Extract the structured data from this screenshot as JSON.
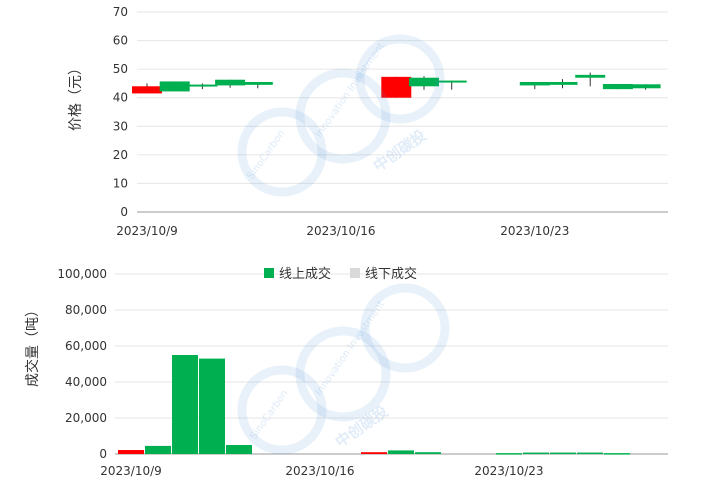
{
  "watermark": {
    "brand_en": "SinoCarbon",
    "tagline_en": "Innovation Investment",
    "brand_cn": "中创碳投",
    "color": "#4a90d9"
  },
  "chart_data": [
    {
      "type": "candlestick",
      "ylabel": "价格（元）",
      "ylim": [
        0,
        70
      ],
      "yticks": [
        0,
        10,
        20,
        30,
        40,
        50,
        60,
        70
      ],
      "xtick_labels": [
        "2023/10/9",
        "2023/10/16",
        "2023/10/23"
      ],
      "grid": true,
      "colors": {
        "up": "#ff0000",
        "down": "#00b050"
      },
      "candles": [
        {
          "date": "2023/10/9",
          "open": 41.5,
          "close": 44.0,
          "high": 45.0,
          "low": 41.5
        },
        {
          "date": "2023/10/10",
          "open": 45.7,
          "close": 42.2,
          "high": 45.7,
          "low": 42.2
        },
        {
          "date": "2023/10/11",
          "open": 44.6,
          "close": 44.2,
          "high": 45.0,
          "low": 43.0
        },
        {
          "date": "2023/10/12",
          "open": 46.3,
          "close": 44.3,
          "high": 46.3,
          "low": 43.5
        },
        {
          "date": "2023/10/13",
          "open": 45.5,
          "close": 44.5,
          "high": 45.5,
          "low": 43.3
        },
        {
          "date": "2023/10/18",
          "open": 40.0,
          "close": 47.3,
          "high": 47.3,
          "low": 40.0
        },
        {
          "date": "2023/10/19",
          "open": 47.0,
          "close": 44.0,
          "high": 47.5,
          "low": 42.8
        },
        {
          "date": "2023/10/20",
          "open": 46.0,
          "close": 45.3,
          "high": 46.0,
          "low": 42.8
        },
        {
          "date": "2023/10/23",
          "open": 45.5,
          "close": 44.3,
          "high": 45.5,
          "low": 43.0
        },
        {
          "date": "2023/10/24",
          "open": 45.5,
          "close": 44.5,
          "high": 46.5,
          "low": 43.3
        },
        {
          "date": "2023/10/25",
          "open": 48.0,
          "close": 47.0,
          "high": 48.8,
          "low": 44.0
        },
        {
          "date": "2023/10/26",
          "open": 44.8,
          "close": 43.0,
          "high": 44.8,
          "low": 43.0
        },
        {
          "date": "2023/10/27",
          "open": 44.7,
          "close": 43.3,
          "high": 44.7,
          "low": 42.8
        }
      ]
    },
    {
      "type": "bar",
      "stacked": true,
      "ylabel": "成交量（吨）",
      "ylim": [
        0,
        100000
      ],
      "yticks": [
        0,
        20000,
        40000,
        60000,
        80000,
        100000
      ],
      "ytick_labels": [
        "0",
        "20,000",
        "40,000",
        "60,000",
        "80,000",
        "100,000"
      ],
      "xtick_labels": [
        "2023/10/9",
        "2023/10/16",
        "2023/10/23"
      ],
      "grid": true,
      "legend_position": "top",
      "series": [
        {
          "name": "线上成交",
          "color": "#00b050",
          "up_color": "#ff0000",
          "values": [
            {
              "date": "2023/10/9",
              "value": 2200,
              "rising": true
            },
            {
              "date": "2023/10/10",
              "value": 4500,
              "rising": false
            },
            {
              "date": "2023/10/11",
              "value": 55000,
              "rising": false
            },
            {
              "date": "2023/10/12",
              "value": 53000,
              "rising": false
            },
            {
              "date": "2023/10/13",
              "value": 5000,
              "rising": false
            },
            {
              "date": "2023/10/18",
              "value": 1000,
              "rising": true
            },
            {
              "date": "2023/10/19",
              "value": 2000,
              "rising": false
            },
            {
              "date": "2023/10/20",
              "value": 1000,
              "rising": false
            },
            {
              "date": "2023/10/23",
              "value": 500,
              "rising": false
            },
            {
              "date": "2023/10/24",
              "value": 800,
              "rising": false
            },
            {
              "date": "2023/10/25",
              "value": 800,
              "rising": false
            },
            {
              "date": "2023/10/26",
              "value": 800,
              "rising": false
            },
            {
              "date": "2023/10/27",
              "value": 500,
              "rising": false
            }
          ]
        },
        {
          "name": "线下成交",
          "color": "#d9d9d9",
          "values": [
            {
              "date": "2023/10/9",
              "value": 0
            },
            {
              "date": "2023/10/10",
              "value": 0
            },
            {
              "date": "2023/10/11",
              "value": 0
            },
            {
              "date": "2023/10/12",
              "value": 0
            },
            {
              "date": "2023/10/13",
              "value": 0
            },
            {
              "date": "2023/10/18",
              "value": 0
            },
            {
              "date": "2023/10/19",
              "value": 0
            },
            {
              "date": "2023/10/20",
              "value": 0
            },
            {
              "date": "2023/10/23",
              "value": 0
            },
            {
              "date": "2023/10/24",
              "value": 0
            },
            {
              "date": "2023/10/25",
              "value": 0
            },
            {
              "date": "2023/10/26",
              "value": 0
            },
            {
              "date": "2023/10/27",
              "value": 0
            }
          ]
        }
      ]
    }
  ]
}
